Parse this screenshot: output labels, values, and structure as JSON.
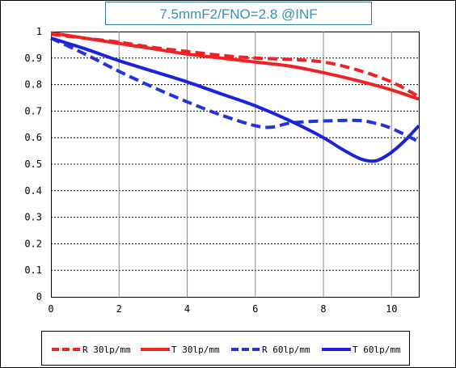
{
  "chart_data": {
    "type": "line",
    "title": "7.5mmF2/FNO=2.8  @INF",
    "xlabel": "",
    "ylabel": "",
    "xlim": [
      0,
      10.8
    ],
    "ylim": [
      0,
      1
    ],
    "x_ticks": [
      "0",
      "2",
      "4",
      "6",
      "8",
      "10"
    ],
    "y_ticks": [
      "0",
      "0.1",
      "0.2",
      "0.3",
      "0.4",
      "0.5",
      "0.6",
      "0.7",
      "0.8",
      "0.9",
      "1"
    ],
    "grid": true,
    "legend_position": "bottom",
    "series": [
      {
        "name": "R 30lp/mm",
        "color": "#ee2222",
        "dash": "dashed",
        "x": [
          0,
          1,
          2,
          3,
          4,
          5,
          6,
          7,
          8,
          9,
          10,
          10.8
        ],
        "y": [
          0.99,
          0.975,
          0.96,
          0.94,
          0.925,
          0.91,
          0.9,
          0.895,
          0.885,
          0.855,
          0.81,
          0.755
        ]
      },
      {
        "name": "T 30lp/mm",
        "color": "#ee2222",
        "dash": "solid",
        "x": [
          0,
          1,
          2,
          3,
          4,
          5,
          6,
          7,
          8,
          9,
          10,
          10.8
        ],
        "y": [
          0.995,
          0.975,
          0.955,
          0.935,
          0.915,
          0.9,
          0.885,
          0.87,
          0.845,
          0.815,
          0.78,
          0.745
        ]
      },
      {
        "name": "R 60lp/mm",
        "color": "#2233dd",
        "dash": "dashed",
        "x": [
          0,
          1,
          2,
          3,
          4,
          5,
          6,
          6.5,
          7,
          7.5,
          8,
          9,
          9.5,
          10,
          10.8
        ],
        "y": [
          0.975,
          0.915,
          0.85,
          0.79,
          0.735,
          0.685,
          0.645,
          0.64,
          0.655,
          0.66,
          0.663,
          0.665,
          0.655,
          0.635,
          0.585
        ]
      },
      {
        "name": "T 60lp/mm",
        "color": "#1a22dd",
        "dash": "solid",
        "x": [
          0,
          1,
          2,
          3,
          4,
          5,
          6,
          7,
          8,
          8.5,
          9,
          9.3,
          9.6,
          10,
          10.4,
          10.8
        ],
        "y": [
          0.975,
          0.935,
          0.89,
          0.85,
          0.81,
          0.765,
          0.72,
          0.665,
          0.6,
          0.56,
          0.525,
          0.513,
          0.515,
          0.545,
          0.59,
          0.645
        ]
      }
    ]
  }
}
